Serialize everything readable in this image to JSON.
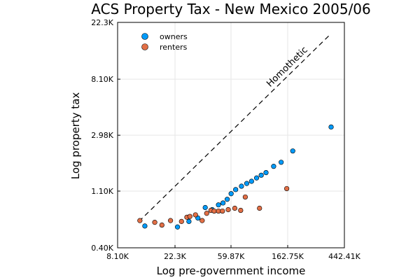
{
  "chart_data": {
    "type": "scatter",
    "title": "ACS Property Tax - New Mexico 2005/06",
    "xlabel": "Log pre-government income",
    "ylabel": "Log property tax",
    "x_scale": "log",
    "y_scale": "log",
    "xlim": [
      8100,
      442410
    ],
    "ylim": [
      400,
      22300
    ],
    "x_ticks": [
      {
        "value": 8100,
        "label": "8.10K"
      },
      {
        "value": 22300,
        "label": "22.3K"
      },
      {
        "value": 59870,
        "label": "59.87K"
      },
      {
        "value": 162750,
        "label": "162.75K"
      },
      {
        "value": 442410,
        "label": "442.41K"
      }
    ],
    "y_ticks": [
      {
        "value": 400,
        "label": "0.40K"
      },
      {
        "value": 1100,
        "label": "1.10K"
      },
      {
        "value": 2980,
        "label": "2.98K"
      },
      {
        "value": 8100,
        "label": "8.10K"
      },
      {
        "value": 22300,
        "label": "22.3K"
      }
    ],
    "grid": true,
    "legend_position": "top-left",
    "series": [
      {
        "name": "owners",
        "color": "#009af9",
        "points": [
          [
            13100,
            590
          ],
          [
            23300,
            580
          ],
          [
            28500,
            640
          ],
          [
            33400,
            680
          ],
          [
            38000,
            820
          ],
          [
            43000,
            790
          ],
          [
            48000,
            860
          ],
          [
            52000,
            890
          ],
          [
            56000,
            950
          ],
          [
            60000,
            1050
          ],
          [
            65000,
            1130
          ],
          [
            72000,
            1200
          ],
          [
            79000,
            1260
          ],
          [
            86000,
            1310
          ],
          [
            94000,
            1390
          ],
          [
            102000,
            1460
          ],
          [
            111000,
            1530
          ],
          [
            127000,
            1710
          ],
          [
            145000,
            1840
          ],
          [
            178000,
            2250
          ],
          [
            350000,
            3450
          ]
        ]
      },
      {
        "name": "renters",
        "color": "#e26f46",
        "points": [
          [
            12000,
            650
          ],
          [
            15600,
            630
          ],
          [
            17700,
            600
          ],
          [
            20600,
            650
          ],
          [
            25000,
            640
          ],
          [
            27500,
            690
          ],
          [
            29000,
            700
          ],
          [
            32000,
            720
          ],
          [
            36000,
            650
          ],
          [
            39000,
            740
          ],
          [
            42000,
            780
          ],
          [
            44500,
            770
          ],
          [
            48000,
            770
          ],
          [
            51500,
            770
          ],
          [
            57000,
            790
          ],
          [
            64000,
            810
          ],
          [
            71000,
            780
          ],
          [
            77000,
            990
          ],
          [
            99000,
            810
          ],
          [
            160000,
            1150
          ]
        ]
      }
    ],
    "reference_line": {
      "label": "Homothetic",
      "points": [
        [
          11800,
          640
        ],
        [
          345000,
          18000
        ]
      ]
    }
  }
}
